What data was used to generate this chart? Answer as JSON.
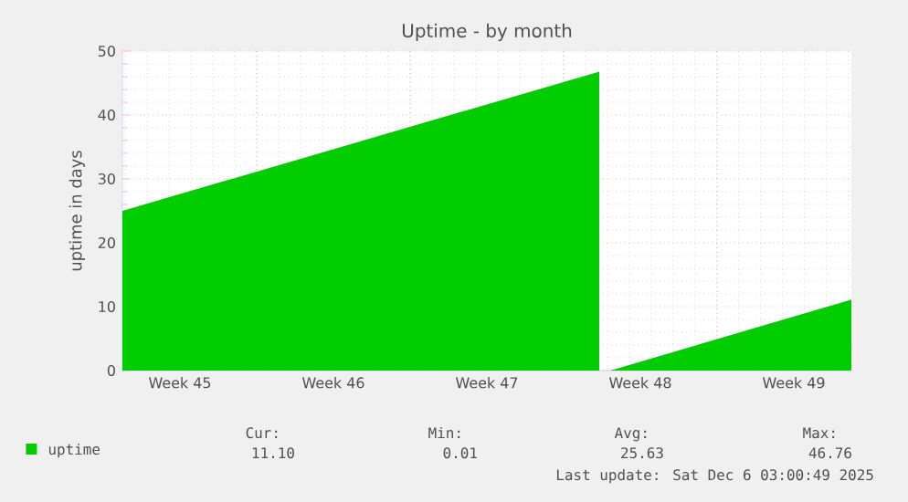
{
  "chart_data": {
    "type": "area",
    "title": "Uptime - by month",
    "ylabel": "uptime in days",
    "xlim": [
      "2025-11-02T21:00",
      "2025-12-06T03:00"
    ],
    "ylim": [
      0,
      50
    ],
    "yticks": [
      0,
      10,
      20,
      30,
      40,
      50
    ],
    "xticks": [
      {
        "value": "2025-11-05T12:00",
        "label": "Week 45"
      },
      {
        "value": "2025-11-09",
        "label": null
      },
      {
        "value": "2025-11-12T12:00",
        "label": "Week 46"
      },
      {
        "value": "2025-11-16",
        "label": null
      },
      {
        "value": "2025-11-19T12:00",
        "label": "Week 47"
      },
      {
        "value": "2025-11-23",
        "label": null
      },
      {
        "value": "2025-11-26T12:00",
        "label": "Week 48"
      },
      {
        "value": "2025-11-30",
        "label": null
      },
      {
        "value": "2025-12-03T12:00",
        "label": "Week 49"
      }
    ],
    "grid": true,
    "legend": "bottom left",
    "series": [
      {
        "name": "uptime",
        "color": "#00cc00",
        "x": [
          "2025-11-02T21:00",
          "2025-11-24T15:00",
          "2025-11-24T15:00",
          "2025-11-25T03:00",
          "2025-12-06T03:00"
        ],
        "values": [
          25,
          46.8,
          0,
          0,
          11.1
        ]
      }
    ],
    "annotations": [
      "Cur:",
      "Min:",
      "Avg:",
      "Max:",
      "11.10",
      "0.01",
      "25.63",
      "46.76",
      "Last update: Sat Dec  6 03:00:49 2025"
    ]
  }
}
